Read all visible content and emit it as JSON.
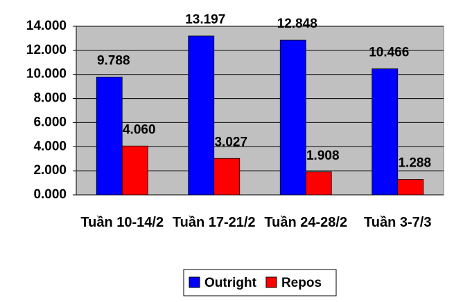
{
  "chart_data": {
    "type": "bar",
    "categories": [
      "Tuần 10-14/2",
      "Tuần 17-21/2",
      "Tuần 24-28/2",
      "Tuần 3-7/3"
    ],
    "series": [
      {
        "name": "Outright",
        "color": "#0000ff",
        "values": [
          9788,
          13197,
          12848,
          10466
        ],
        "value_labels": [
          "9.788",
          "13.197",
          "12.848",
          "10.466"
        ]
      },
      {
        "name": "Repos",
        "color": "#ff0000",
        "values": [
          4060,
          3027,
          1908,
          1288
        ],
        "value_labels": [
          "4.060",
          "3.027",
          "1.908",
          "1.288"
        ]
      }
    ],
    "ylim": [
      0,
      14000
    ],
    "yticks": [
      {
        "value": 0,
        "label": "0.000"
      },
      {
        "value": 2000,
        "label": "2.000"
      },
      {
        "value": 4000,
        "label": "4.000"
      },
      {
        "value": 6000,
        "label": "6.000"
      },
      {
        "value": 8000,
        "label": "8.000"
      },
      {
        "value": 10000,
        "label": "10.000"
      },
      {
        "value": 12000,
        "label": "12.000"
      },
      {
        "value": 14000,
        "label": "14.000"
      }
    ],
    "grid": true,
    "legend": "bottom"
  }
}
